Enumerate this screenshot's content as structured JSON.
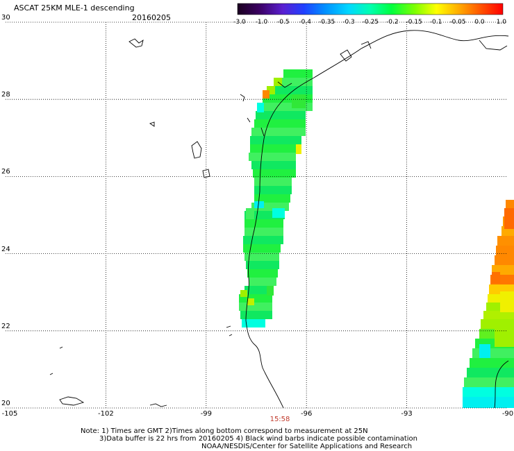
{
  "header": {
    "title": "ASCAT 25KM MLE-1 descending",
    "date": "20160205"
  },
  "colorbar": {
    "labels": [
      "-3.0",
      "-1.0",
      "-0.5",
      "-0.4",
      "-0.35",
      "-0.3",
      "-0.25",
      "-0.2",
      "-0.15",
      "-0.1",
      "-0.05",
      "0.0",
      "1.0"
    ],
    "colors": [
      "#2b0a3d",
      "#4b0082",
      "#3b1fd0",
      "#0044ff",
      "#0096ff",
      "#00d4ff",
      "#00ffd0",
      "#00ff80",
      "#40ff00",
      "#aaff00",
      "#ffff00",
      "#ff9900",
      "#ff2200"
    ]
  },
  "map": {
    "lat_labels": [
      "30",
      "28",
      "26",
      "24",
      "22",
      "20"
    ],
    "lon_labels": [
      "-105",
      "-102",
      "-99",
      "-96",
      "-93",
      "-90"
    ],
    "time_label": "15:58"
  },
  "footer": {
    "note_line1": "Note: 1) Times are GMT 2)Times along bottom correspond to measurement at 25N",
    "note_line2": "3)Data buffer is 22 hrs from 20160205 4) Black wind barbs indicate possible contamination",
    "note_line3": "NOAA/NESDIS/Center for Satellite Applications and Research"
  }
}
